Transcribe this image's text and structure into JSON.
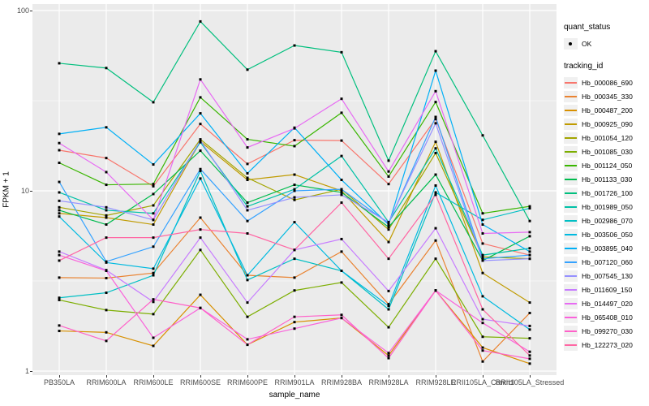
{
  "chart_data": {
    "type": "line",
    "title": "",
    "xlabel": "sample_name",
    "ylabel": "FPKM + 1",
    "y_scale": "log10",
    "ylim": [
      1,
      100
    ],
    "y_ticks": [
      1,
      10,
      100
    ],
    "y_minor_breaks": [
      3.1623,
      31.623
    ],
    "grid": "on",
    "panel_bg": "#EBEBEB",
    "grid_color": "#FFFFFF",
    "point_color": "#000000",
    "legend_position": "right",
    "legend": {
      "quant_title": "quant_status",
      "quant_item": "OK",
      "tracking_title": "tracking_id"
    },
    "categories": [
      "PB350LA",
      "RRIM600LA",
      "RRIM600LE",
      "RRIM600SE",
      "RRIM600PE",
      "RRIM901LA",
      "RRIM928BA",
      "RRIM928LA",
      "RRIM928LE",
      "RRII105LA_Control",
      "RRII105LA_Stressed"
    ],
    "series": [
      {
        "name": "Hb_000086_690",
        "color": "#F8766D",
        "values": [
          16.8,
          15.2,
          10.6,
          23.5,
          14.1,
          19.1,
          19.0,
          10.9,
          25.0,
          5.1,
          4.4
        ]
      },
      {
        "name": "Hb_000345_330",
        "color": "#EA8331",
        "values": [
          3.3,
          3.28,
          3.5,
          7.1,
          3.4,
          3.3,
          4.6,
          2.35,
          5.3,
          1.13,
          2.1
        ]
      },
      {
        "name": "Hb_000487_200",
        "color": "#D89000",
        "values": [
          1.67,
          1.64,
          1.38,
          2.65,
          1.4,
          1.87,
          1.97,
          1.22,
          2.8,
          1.35,
          1.1
        ]
      },
      {
        "name": "Hb_000925_090",
        "color": "#C09B00",
        "values": [
          7.5,
          7.1,
          6.5,
          18.8,
          11.5,
          12.3,
          10.0,
          5.2,
          18.7,
          3.5,
          2.4
        ]
      },
      {
        "name": "Hb_001054_120",
        "color": "#A3A500",
        "values": [
          8.1,
          7.3,
          8.3,
          19.3,
          11.8,
          8.9,
          10.2,
          6.1,
          16.2,
          4.3,
          4.2
        ]
      },
      {
        "name": "Hb_001085_030",
        "color": "#7CAE00",
        "values": [
          2.48,
          2.18,
          2.07,
          4.7,
          2.0,
          2.8,
          3.1,
          1.75,
          4.2,
          1.55,
          1.52
        ]
      },
      {
        "name": "Hb_001124_050",
        "color": "#39B600",
        "values": [
          14.3,
          10.8,
          10.9,
          33.0,
          19.3,
          17.7,
          27.1,
          12.0,
          31.1,
          7.5,
          8.2
        ]
      },
      {
        "name": "Hb_001133_030",
        "color": "#00BB4E",
        "values": [
          7.8,
          6.5,
          9.6,
          16.7,
          8.6,
          10.8,
          9.8,
          6.3,
          12.3,
          4.1,
          5.6
        ]
      },
      {
        "name": "Hb_001726_100",
        "color": "#00BF7D",
        "values": [
          51,
          48,
          31,
          87,
          47,
          64,
          58.7,
          14.7,
          59.5,
          20.3,
          6.8
        ]
      },
      {
        "name": "Hb_001989_050",
        "color": "#00C1A7",
        "values": [
          9.8,
          7.8,
          7.5,
          18.6,
          8.2,
          10.2,
          15.6,
          6.7,
          17.2,
          4.4,
          4.8
        ]
      },
      {
        "name": "Hb_002986_070",
        "color": "#00BFC4",
        "values": [
          2.55,
          2.72,
          3.4,
          12.9,
          3.2,
          4.2,
          3.6,
          2.2,
          9.8,
          6.9,
          8.0
        ]
      },
      {
        "name": "Hb_003506_050",
        "color": "#00BAE0",
        "values": [
          7.2,
          4.0,
          3.7,
          11.7,
          3.4,
          6.7,
          3.6,
          2.3,
          10.7,
          2.6,
          1.7
        ]
      },
      {
        "name": "Hb_003895_040",
        "color": "#00B0F6",
        "values": [
          20.7,
          22.5,
          14.0,
          26.9,
          12.5,
          22.4,
          11.5,
          6.5,
          46.4,
          6.5,
          4.6
        ]
      },
      {
        "name": "Hb_007120_060",
        "color": "#35A2FF",
        "values": [
          11.2,
          4.05,
          4.9,
          13.2,
          6.8,
          10.0,
          10.2,
          6.6,
          25.7,
          4.2,
          4.4
        ]
      },
      {
        "name": "Hb_007545_130",
        "color": "#9590FF",
        "values": [
          8.8,
          8.1,
          6.9,
          19.0,
          7.8,
          9.2,
          9.5,
          6.7,
          23.7,
          4.1,
          4.2
        ]
      },
      {
        "name": "Hb_011609_150",
        "color": "#C77CFF",
        "values": [
          4.6,
          3.63,
          2.42,
          5.5,
          2.4,
          4.7,
          5.4,
          2.78,
          6.2,
          1.94,
          1.78
        ]
      },
      {
        "name": "Hb_014497_020",
        "color": "#E76BF3",
        "values": [
          18.4,
          12.7,
          6.9,
          41.5,
          17.4,
          22.2,
          32.4,
          12.8,
          35.7,
          5.8,
          5.9
        ]
      },
      {
        "name": "Hb_065408_010",
        "color": "#FA62DB",
        "values": [
          4.4,
          3.6,
          1.53,
          2.24,
          1.5,
          1.72,
          1.97,
          1.26,
          2.8,
          1.85,
          1.28
        ]
      },
      {
        "name": "Hb_099270_030",
        "color": "#FF61C9",
        "values": [
          1.79,
          1.47,
          2.5,
          2.24,
          1.4,
          2.0,
          2.05,
          1.18,
          2.8,
          1.3,
          1.17
        ]
      },
      {
        "name": "Hb_122273_020",
        "color": "#FF67A4",
        "values": [
          4.1,
          5.5,
          5.5,
          6.1,
          5.8,
          4.7,
          8.6,
          4.2,
          9.5,
          2.2,
          1.22
        ]
      }
    ]
  }
}
